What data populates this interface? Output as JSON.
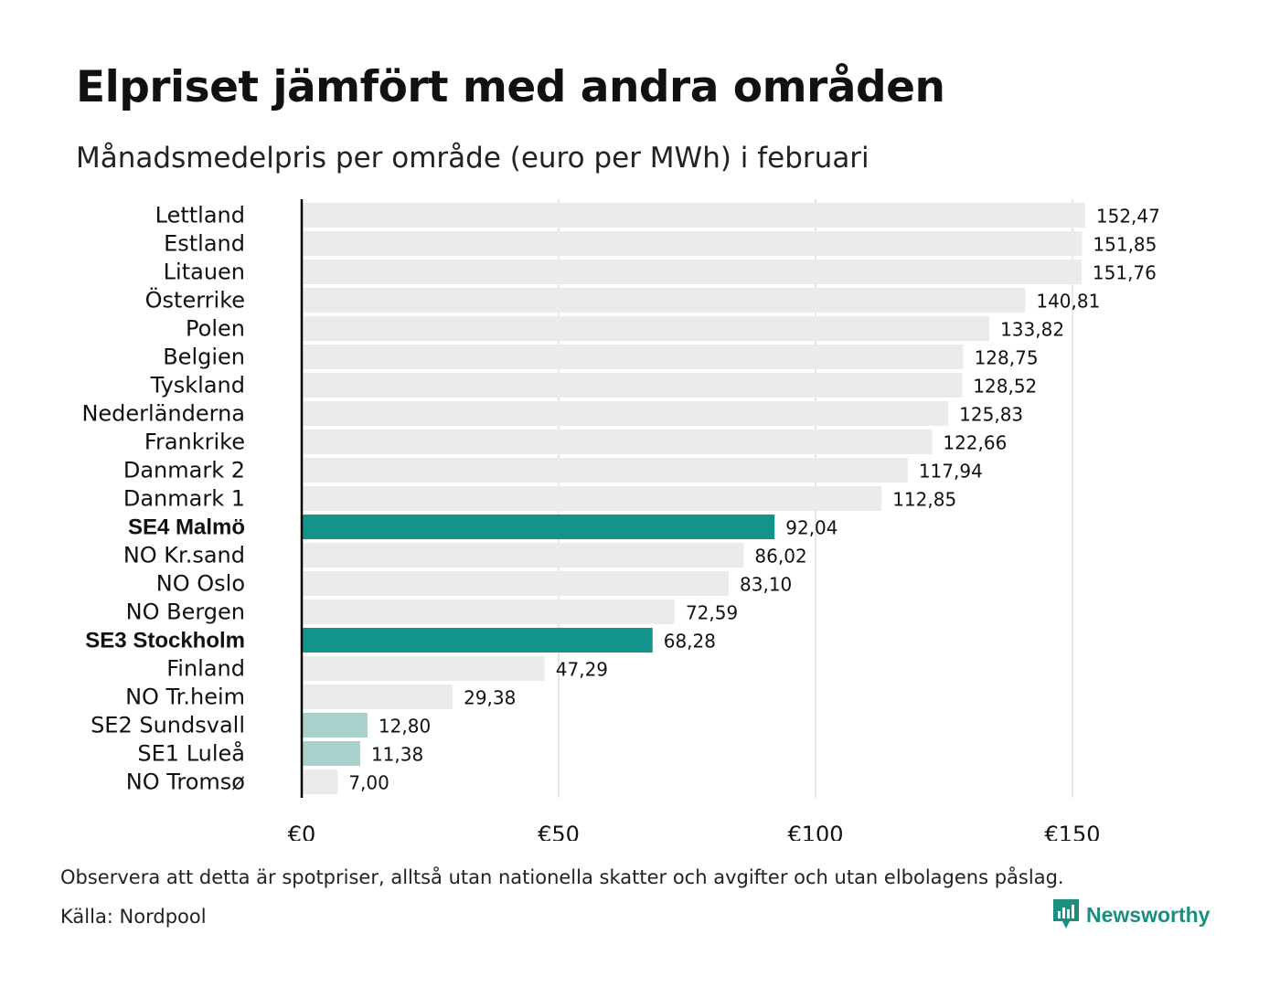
{
  "title": "Elpriset jämfört med andra områden",
  "subtitle": "Månadsmedelpris per område (euro per MWh) i februari",
  "note": "Observera att detta är spotpriser, alltså utan nationella skatter och avgifter och utan elbolagens påslag.",
  "source": "Källa: Nordpool",
  "brand": {
    "name": "Newsworthy",
    "icon": "newsworthy-logo-icon",
    "color": "#1a8f80"
  },
  "colors": {
    "default_bar": "#ebebeb",
    "highlight_dark": "#13948a",
    "highlight_light": "#a8d1cc",
    "axis": "#000000",
    "grid": "#cfcfd4"
  },
  "chart_data": {
    "type": "bar",
    "orientation": "horizontal",
    "categories": [
      "Lettland",
      "Estland",
      "Litauen",
      "Österrike",
      "Polen",
      "Belgien",
      "Tyskland",
      "Nederländerna",
      "Frankrike",
      "Danmark 2",
      "Danmark 1",
      "SE4 Malmö",
      "NO Kr.sand",
      "NO Oslo",
      "NO Bergen",
      "SE3 Stockholm",
      "Finland",
      "NO Tr.heim",
      "SE2 Sundsvall",
      "SE1 Luleå",
      "NO Tromsø"
    ],
    "values": [
      152.47,
      151.85,
      151.76,
      140.81,
      133.82,
      128.75,
      128.52,
      125.83,
      122.66,
      117.94,
      112.85,
      92.04,
      86.02,
      83.1,
      72.59,
      68.28,
      47.29,
      29.38,
      12.8,
      11.38,
      7.0
    ],
    "value_labels": [
      "152,47",
      "151,85",
      "151,76",
      "140,81",
      "133,82",
      "128,75",
      "128,52",
      "125,83",
      "122,66",
      "117,94",
      "112,85",
      "92,04",
      "86,02",
      "83,10",
      "72,59",
      "68,28",
      "47,29",
      "29,38",
      "12,80",
      "11,38",
      "7,00"
    ],
    "bar_styles": [
      "default",
      "default",
      "default",
      "default",
      "default",
      "default",
      "default",
      "default",
      "default",
      "default",
      "default",
      "highlight_dark",
      "default",
      "default",
      "default",
      "highlight_dark",
      "default",
      "default",
      "highlight_light",
      "highlight_light",
      "default"
    ],
    "bold_labels": [
      "SE4 Malmö",
      "SE3 Stockholm"
    ],
    "xlim": [
      0,
      160
    ],
    "xticks": [
      0,
      50,
      100,
      150
    ],
    "xtick_labels": [
      "€0",
      "€50",
      "€100",
      "€150"
    ],
    "grid": "vertical",
    "legend": "none"
  }
}
